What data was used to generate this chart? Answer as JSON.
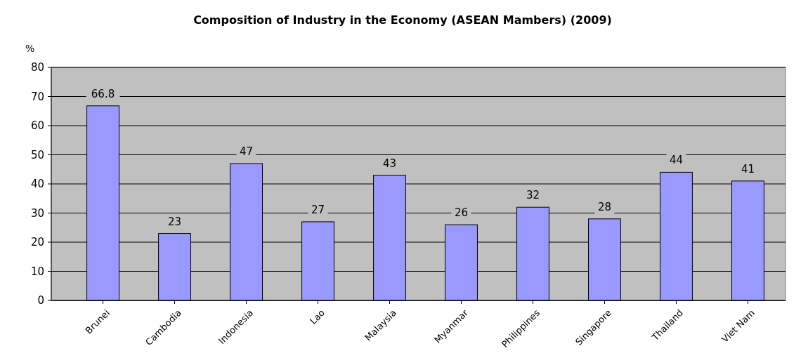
{
  "chart_data": {
    "type": "bar",
    "title": "Composition of Industry in the Economy (ASEAN Mambers) (2009)",
    "ylabel": "%",
    "categories": [
      "Brunei",
      "Cambodia",
      "Indonesia",
      "Lao",
      "Malaysia",
      "Myanmar",
      "Philippines",
      "Singapore",
      "Thailand",
      "Viet Nam"
    ],
    "values": [
      66.8,
      23,
      47,
      27,
      43,
      26,
      32,
      28,
      44,
      41
    ],
    "color": "#9999ff",
    "ylim": [
      0,
      80
    ],
    "yticks": [
      0,
      10,
      20,
      30,
      40,
      50,
      60,
      70,
      80
    ],
    "grid": "y",
    "data_labels": true
  }
}
